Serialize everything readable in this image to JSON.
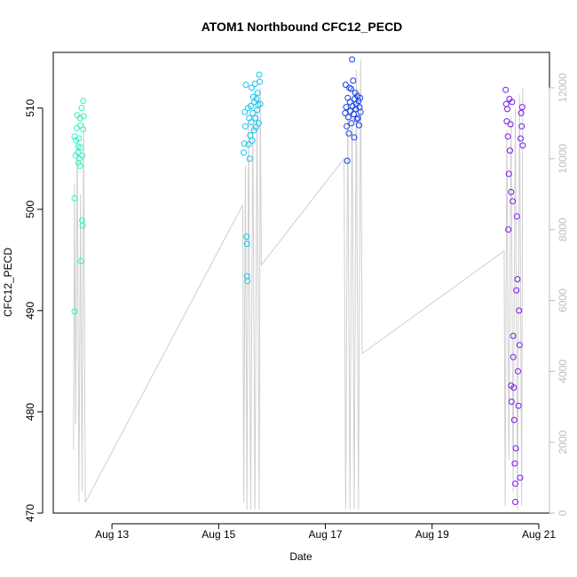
{
  "chart_data": {
    "type": "scatter",
    "title": "ATOM1 Northbound CFC12_PECD",
    "xlabel": "Date",
    "ylabel": "CFC12_PECD",
    "x_ticks": [
      "Aug 13",
      "Aug 15",
      "Aug 17",
      "Aug 19",
      "Aug 21"
    ],
    "x_tick_days": [
      13,
      15,
      17,
      19,
      21
    ],
    "x_range_days": [
      11.9,
      21.2
    ],
    "y_ticks": [
      470,
      480,
      490,
      500,
      510
    ],
    "ylim": [
      470,
      515.5
    ],
    "y2_ticks": [
      0,
      2000,
      4000,
      6000,
      8000,
      10000,
      12000
    ],
    "y2lim": [
      0,
      13000
    ],
    "grid": false,
    "legend": "none",
    "colors": {
      "secondary_line": "#cfcfcf",
      "right_axis": "#bdbdbd",
      "palette": [
        "#2ef2c0",
        "#14c4f0",
        "#1540f0",
        "#7a18ee"
      ]
    },
    "series": [
      {
        "values": [
          {
            "x": 12.3,
            "y": 489.9
          },
          {
            "x": 12.3,
            "y": 501.1
          },
          {
            "x": 12.3,
            "y": 507.2
          },
          {
            "x": 12.32,
            "y": 505.3
          },
          {
            "x": 12.33,
            "y": 506.8
          },
          {
            "x": 12.34,
            "y": 508.0
          },
          {
            "x": 12.35,
            "y": 509.3
          },
          {
            "x": 12.36,
            "y": 505.6
          },
          {
            "x": 12.37,
            "y": 504.6
          },
          {
            "x": 12.37,
            "y": 506.2
          },
          {
            "x": 12.38,
            "y": 507.0
          },
          {
            "x": 12.39,
            "y": 505.0
          },
          {
            "x": 12.4,
            "y": 504.3
          },
          {
            "x": 12.4,
            "y": 509.0
          },
          {
            "x": 12.41,
            "y": 508.3
          },
          {
            "x": 12.42,
            "y": 506.1
          },
          {
            "x": 12.42,
            "y": 494.9
          },
          {
            "x": 12.43,
            "y": 510.0
          },
          {
            "x": 12.44,
            "y": 505.3
          },
          {
            "x": 12.44,
            "y": 498.9
          },
          {
            "x": 12.45,
            "y": 498.4
          },
          {
            "x": 12.46,
            "y": 507.9
          },
          {
            "x": 12.46,
            "y": 510.7
          },
          {
            "x": 12.47,
            "y": 509.2
          }
        ]
      },
      {
        "values": [
          {
            "x": 15.47,
            "y": 505.6
          },
          {
            "x": 15.48,
            "y": 506.5
          },
          {
            "x": 15.49,
            "y": 509.6
          },
          {
            "x": 15.5,
            "y": 508.2
          },
          {
            "x": 15.51,
            "y": 512.3
          },
          {
            "x": 15.52,
            "y": 497.3
          },
          {
            "x": 15.53,
            "y": 496.6
          },
          {
            "x": 15.53,
            "y": 493.4
          },
          {
            "x": 15.54,
            "y": 492.9
          },
          {
            "x": 15.55,
            "y": 510.0
          },
          {
            "x": 15.56,
            "y": 506.4
          },
          {
            "x": 15.57,
            "y": 509.0
          },
          {
            "x": 15.58,
            "y": 505.0
          },
          {
            "x": 15.59,
            "y": 507.3
          },
          {
            "x": 15.6,
            "y": 510.2
          },
          {
            "x": 15.61,
            "y": 508.6
          },
          {
            "x": 15.62,
            "y": 512.0
          },
          {
            "x": 15.63,
            "y": 506.8
          },
          {
            "x": 15.64,
            "y": 509.5
          },
          {
            "x": 15.65,
            "y": 511.1
          },
          {
            "x": 15.66,
            "y": 507.8
          },
          {
            "x": 15.67,
            "y": 510.6
          },
          {
            "x": 15.68,
            "y": 512.4
          },
          {
            "x": 15.69,
            "y": 509.0
          },
          {
            "x": 15.7,
            "y": 508.1
          },
          {
            "x": 15.71,
            "y": 510.9
          },
          {
            "x": 15.72,
            "y": 509.8
          },
          {
            "x": 15.73,
            "y": 511.5
          },
          {
            "x": 15.74,
            "y": 510.3
          },
          {
            "x": 15.75,
            "y": 508.5
          },
          {
            "x": 15.76,
            "y": 513.3
          },
          {
            "x": 15.77,
            "y": 512.6
          },
          {
            "x": 15.78,
            "y": 510.4
          }
        ]
      },
      {
        "values": [
          {
            "x": 17.37,
            "y": 509.5
          },
          {
            "x": 17.38,
            "y": 512.3
          },
          {
            "x": 17.39,
            "y": 510.1
          },
          {
            "x": 17.4,
            "y": 508.2
          },
          {
            "x": 17.41,
            "y": 504.8
          },
          {
            "x": 17.42,
            "y": 511.0
          },
          {
            "x": 17.43,
            "y": 509.1
          },
          {
            "x": 17.44,
            "y": 507.5
          },
          {
            "x": 17.45,
            "y": 512.0
          },
          {
            "x": 17.46,
            "y": 510.6
          },
          {
            "x": 17.47,
            "y": 509.7
          },
          {
            "x": 17.48,
            "y": 511.9
          },
          {
            "x": 17.49,
            "y": 508.5
          },
          {
            "x": 17.5,
            "y": 514.8
          },
          {
            "x": 17.51,
            "y": 510.2
          },
          {
            "x": 17.52,
            "y": 512.7
          },
          {
            "x": 17.53,
            "y": 509.4
          },
          {
            "x": 17.54,
            "y": 507.1
          },
          {
            "x": 17.55,
            "y": 510.9
          },
          {
            "x": 17.56,
            "y": 511.5
          },
          {
            "x": 17.57,
            "y": 509.9
          },
          {
            "x": 17.58,
            "y": 510.4
          },
          {
            "x": 17.59,
            "y": 508.9
          },
          {
            "x": 17.6,
            "y": 511.2
          },
          {
            "x": 17.61,
            "y": 509.0
          },
          {
            "x": 17.62,
            "y": 510.7
          },
          {
            "x": 17.63,
            "y": 508.3
          },
          {
            "x": 17.64,
            "y": 510.1
          },
          {
            "x": 17.65,
            "y": 511.0
          },
          {
            "x": 17.66,
            "y": 509.6
          }
        ]
      },
      {
        "values": [
          {
            "x": 20.38,
            "y": 511.8
          },
          {
            "x": 20.39,
            "y": 510.4
          },
          {
            "x": 20.4,
            "y": 508.7
          },
          {
            "x": 20.41,
            "y": 509.9
          },
          {
            "x": 20.42,
            "y": 507.2
          },
          {
            "x": 20.43,
            "y": 498.0
          },
          {
            "x": 20.44,
            "y": 503.5
          },
          {
            "x": 20.45,
            "y": 510.9
          },
          {
            "x": 20.46,
            "y": 505.8
          },
          {
            "x": 20.47,
            "y": 508.4
          },
          {
            "x": 20.48,
            "y": 501.7
          },
          {
            "x": 20.48,
            "y": 482.6
          },
          {
            "x": 20.49,
            "y": 481.0
          },
          {
            "x": 20.5,
            "y": 510.6
          },
          {
            "x": 20.51,
            "y": 500.8
          },
          {
            "x": 20.52,
            "y": 487.5
          },
          {
            "x": 20.52,
            "y": 485.4
          },
          {
            "x": 20.53,
            "y": 482.4
          },
          {
            "x": 20.54,
            "y": 479.2
          },
          {
            "x": 20.55,
            "y": 474.9
          },
          {
            "x": 20.56,
            "y": 472.9
          },
          {
            "x": 20.56,
            "y": 471.1
          },
          {
            "x": 20.57,
            "y": 476.4
          },
          {
            "x": 20.58,
            "y": 492.0
          },
          {
            "x": 20.59,
            "y": 499.3
          },
          {
            "x": 20.6,
            "y": 493.1
          },
          {
            "x": 20.61,
            "y": 484.0
          },
          {
            "x": 20.62,
            "y": 480.6
          },
          {
            "x": 20.63,
            "y": 490.0
          },
          {
            "x": 20.64,
            "y": 486.6
          },
          {
            "x": 20.65,
            "y": 473.5
          },
          {
            "x": 20.66,
            "y": 507.0
          },
          {
            "x": 20.67,
            "y": 509.5
          },
          {
            "x": 20.68,
            "y": 508.2
          },
          {
            "x": 20.69,
            "y": 510.1
          },
          {
            "x": 20.7,
            "y": 506.3
          }
        ]
      }
    ],
    "secondary_line": {
      "axis": "right",
      "points": [
        {
          "x": 12.28,
          "y": 1800
        },
        {
          "x": 12.3,
          "y": 9300
        },
        {
          "x": 12.32,
          "y": 2500
        },
        {
          "x": 12.35,
          "y": 10500
        },
        {
          "x": 12.38,
          "y": 300
        },
        {
          "x": 12.41,
          "y": 9000
        },
        {
          "x": 12.44,
          "y": 600
        },
        {
          "x": 12.47,
          "y": 11000
        },
        {
          "x": 12.5,
          "y": 300
        },
        {
          "x": 15.45,
          "y": 8700
        },
        {
          "x": 15.47,
          "y": 300
        },
        {
          "x": 15.5,
          "y": 9800
        },
        {
          "x": 15.53,
          "y": 100
        },
        {
          "x": 15.56,
          "y": 11000
        },
        {
          "x": 15.6,
          "y": 100
        },
        {
          "x": 15.64,
          "y": 11000
        },
        {
          "x": 15.68,
          "y": 100
        },
        {
          "x": 15.72,
          "y": 11500
        },
        {
          "x": 15.76,
          "y": 100
        },
        {
          "x": 15.78,
          "y": 12000
        },
        {
          "x": 15.8,
          "y": 7000
        },
        {
          "x": 17.35,
          "y": 10000
        },
        {
          "x": 17.38,
          "y": 100
        },
        {
          "x": 17.42,
          "y": 11500
        },
        {
          "x": 17.46,
          "y": 100
        },
        {
          "x": 17.5,
          "y": 11800
        },
        {
          "x": 17.54,
          "y": 100
        },
        {
          "x": 17.58,
          "y": 12500
        },
        {
          "x": 17.62,
          "y": 100
        },
        {
          "x": 17.66,
          "y": 12800
        },
        {
          "x": 17.69,
          "y": 4500
        },
        {
          "x": 20.35,
          "y": 7400
        },
        {
          "x": 20.37,
          "y": 200
        },
        {
          "x": 20.4,
          "y": 10800
        },
        {
          "x": 20.44,
          "y": 1500
        },
        {
          "x": 20.48,
          "y": 11200
        },
        {
          "x": 20.52,
          "y": 600
        },
        {
          "x": 20.56,
          "y": 11400
        },
        {
          "x": 20.6,
          "y": 100
        },
        {
          "x": 20.64,
          "y": 11800
        },
        {
          "x": 20.68,
          "y": 200
        },
        {
          "x": 20.7,
          "y": 12000
        }
      ]
    }
  }
}
